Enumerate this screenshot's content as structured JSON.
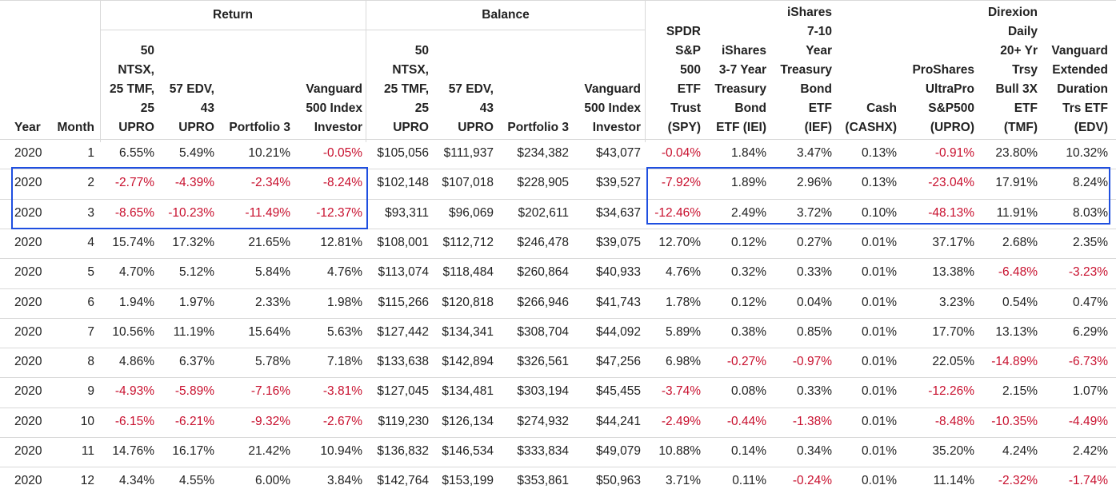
{
  "groups": {
    "return": "Return",
    "balance": "Balance"
  },
  "columns": [
    {
      "key": "year",
      "label": "Year"
    },
    {
      "key": "month",
      "label": "Month"
    },
    {
      "key": "r1",
      "label": "50\nNTSX,\n25 TMF,\n25\nUPRO"
    },
    {
      "key": "r2",
      "label": "57 EDV,\n43\nUPRO"
    },
    {
      "key": "r3",
      "label": "Portfolio 3"
    },
    {
      "key": "r4",
      "label": "Vanguard\n500 Index\nInvestor"
    },
    {
      "key": "b1",
      "label": "50\nNTSX,\n25 TMF,\n25\nUPRO"
    },
    {
      "key": "b2",
      "label": "57 EDV,\n43\nUPRO"
    },
    {
      "key": "b3",
      "label": "Portfolio 3"
    },
    {
      "key": "b4",
      "label": "Vanguard\n500 Index\nInvestor"
    },
    {
      "key": "spy",
      "label": "SPDR\nS&P\n500\nETF\nTrust\n(SPY)"
    },
    {
      "key": "iei",
      "label": "iShares\n3-7 Year\nTreasury\nBond\nETF (IEI)"
    },
    {
      "key": "ief",
      "label": "iShares\n7-10\nYear\nTreasury\nBond\nETF\n(IEF)"
    },
    {
      "key": "cash",
      "label": "Cash\n(CASHX)"
    },
    {
      "key": "upro",
      "label": "ProShares\nUltraPro\nS&P500\n(UPRO)"
    },
    {
      "key": "tmf",
      "label": "Direxion\nDaily\n20+ Yr\nTrsy\nBull 3X\nETF\n(TMF)"
    },
    {
      "key": "edv",
      "label": "Vanguard\nExtended\nDuration\nTrs ETF\n(EDV)"
    }
  ],
  "rows": [
    [
      "2020",
      "1",
      "6.55%",
      "5.49%",
      "10.21%",
      "-0.05%",
      "$105,056",
      "$111,937",
      "$234,382",
      "$43,077",
      "-0.04%",
      "1.84%",
      "3.47%",
      "0.13%",
      "-0.91%",
      "23.80%",
      "10.32%"
    ],
    [
      "2020",
      "2",
      "-2.77%",
      "-4.39%",
      "-2.34%",
      "-8.24%",
      "$102,148",
      "$107,018",
      "$228,905",
      "$39,527",
      "-7.92%",
      "1.89%",
      "2.96%",
      "0.13%",
      "-23.04%",
      "17.91%",
      "8.24%"
    ],
    [
      "2020",
      "3",
      "-8.65%",
      "-10.23%",
      "-11.49%",
      "-12.37%",
      "$93,311",
      "$96,069",
      "$202,611",
      "$34,637",
      "-12.46%",
      "2.49%",
      "3.72%",
      "0.10%",
      "-48.13%",
      "11.91%",
      "8.03%"
    ],
    [
      "2020",
      "4",
      "15.74%",
      "17.32%",
      "21.65%",
      "12.81%",
      "$108,001",
      "$112,712",
      "$246,478",
      "$39,075",
      "12.70%",
      "0.12%",
      "0.27%",
      "0.01%",
      "37.17%",
      "2.68%",
      "2.35%"
    ],
    [
      "2020",
      "5",
      "4.70%",
      "5.12%",
      "5.84%",
      "4.76%",
      "$113,074",
      "$118,484",
      "$260,864",
      "$40,933",
      "4.76%",
      "0.32%",
      "0.33%",
      "0.01%",
      "13.38%",
      "-6.48%",
      "-3.23%"
    ],
    [
      "2020",
      "6",
      "1.94%",
      "1.97%",
      "2.33%",
      "1.98%",
      "$115,266",
      "$120,818",
      "$266,946",
      "$41,743",
      "1.78%",
      "0.12%",
      "0.04%",
      "0.01%",
      "3.23%",
      "0.54%",
      "0.47%"
    ],
    [
      "2020",
      "7",
      "10.56%",
      "11.19%",
      "15.64%",
      "5.63%",
      "$127,442",
      "$134,341",
      "$308,704",
      "$44,092",
      "5.89%",
      "0.38%",
      "0.85%",
      "0.01%",
      "17.70%",
      "13.13%",
      "6.29%"
    ],
    [
      "2020",
      "8",
      "4.86%",
      "6.37%",
      "5.78%",
      "7.18%",
      "$133,638",
      "$142,894",
      "$326,561",
      "$47,256",
      "6.98%",
      "-0.27%",
      "-0.97%",
      "0.01%",
      "22.05%",
      "-14.89%",
      "-6.73%"
    ],
    [
      "2020",
      "9",
      "-4.93%",
      "-5.89%",
      "-7.16%",
      "-3.81%",
      "$127,045",
      "$134,481",
      "$303,194",
      "$45,455",
      "-3.74%",
      "0.08%",
      "0.33%",
      "0.01%",
      "-12.26%",
      "2.15%",
      "1.07%"
    ],
    [
      "2020",
      "10",
      "-6.15%",
      "-6.21%",
      "-9.32%",
      "-2.67%",
      "$119,230",
      "$126,134",
      "$274,932",
      "$44,241",
      "-2.49%",
      "-0.44%",
      "-1.38%",
      "0.01%",
      "-8.48%",
      "-10.35%",
      "-4.49%"
    ],
    [
      "2020",
      "11",
      "14.76%",
      "16.17%",
      "21.42%",
      "10.94%",
      "$136,832",
      "$146,534",
      "$333,834",
      "$49,079",
      "10.88%",
      "0.14%",
      "0.34%",
      "0.01%",
      "35.20%",
      "4.24%",
      "2.42%"
    ],
    [
      "2020",
      "12",
      "4.34%",
      "4.55%",
      "6.00%",
      "3.84%",
      "$142,764",
      "$153,199",
      "$353,861",
      "$50,963",
      "3.71%",
      "0.11%",
      "-0.24%",
      "0.01%",
      "11.14%",
      "-2.32%",
      "-1.74%"
    ]
  ],
  "colors": {
    "negative": "#c8102e",
    "highlight": "#1f4fe0",
    "grid": "#d9d9d9"
  }
}
